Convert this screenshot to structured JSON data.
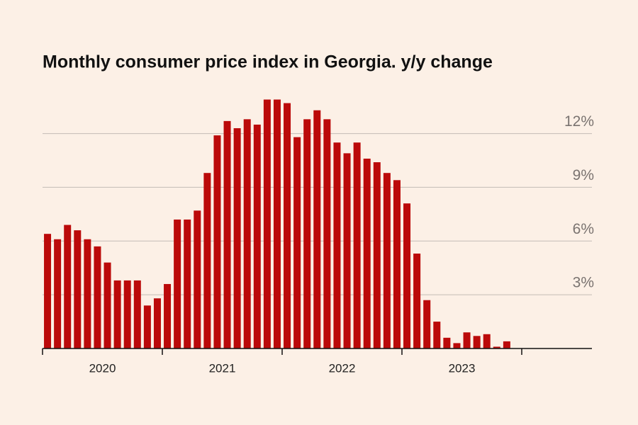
{
  "chart_data": {
    "type": "bar",
    "title": "Monthly consumer price index in Georgia. y/y change",
    "categories": [
      null,
      null,
      null,
      null,
      null,
      null,
      null,
      null,
      null,
      null,
      null,
      null,
      null,
      null,
      null,
      null,
      null,
      null,
      null,
      null,
      null,
      null,
      null,
      null,
      null,
      null,
      null,
      null,
      null,
      null,
      null,
      null,
      null,
      null,
      null,
      null,
      null,
      null,
      null,
      null,
      null,
      null,
      null,
      null,
      null,
      null,
      null
    ],
    "values": [
      6.4,
      6.1,
      6.9,
      6.6,
      6.1,
      5.7,
      4.8,
      3.8,
      3.8,
      3.8,
      2.4,
      2.8,
      3.6,
      7.2,
      7.2,
      7.7,
      9.8,
      11.9,
      12.7,
      12.3,
      12.8,
      12.5,
      13.9,
      13.9,
      13.7,
      11.8,
      12.8,
      13.3,
      12.8,
      11.5,
      10.9,
      11.5,
      10.6,
      10.4,
      9.8,
      9.4,
      8.1,
      5.3,
      2.7,
      1.5,
      0.6,
      0.3,
      0.9,
      0.7,
      0.8,
      0.1,
      0.4
    ],
    "year_labels": [
      "2020",
      "2021",
      "2022",
      "2023"
    ],
    "color": "#bb0a0a",
    "ylim": [
      0,
      14
    ],
    "yticks": [
      {
        "value": 3,
        "label": "3%"
      },
      {
        "value": 6,
        "label": "6%"
      },
      {
        "value": 9,
        "label": "9%"
      },
      {
        "value": 12,
        "label": "12%"
      }
    ],
    "grid": true
  }
}
